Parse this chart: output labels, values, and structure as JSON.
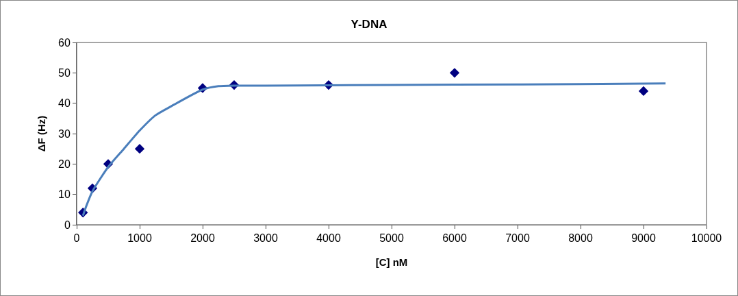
{
  "chart_data": {
    "type": "scatter",
    "title": "Y-DNA",
    "xlabel": "[C] nM",
    "ylabel": "ΔF (Hz)",
    "xlim": [
      0,
      10000
    ],
    "xticks": [
      0,
      1000,
      2000,
      3000,
      4000,
      5000,
      6000,
      7000,
      8000,
      9000,
      10000
    ],
    "ylim": [
      0,
      60
    ],
    "yticks": [
      0,
      10,
      20,
      30,
      40,
      50,
      60
    ],
    "grid": false,
    "series": [
      {
        "marker": "diamond",
        "color": "#000080",
        "x": [
          100,
          250,
          500,
          1000,
          2000,
          2500,
          4000,
          6000,
          9000
        ],
        "values": [
          4,
          12,
          20,
          25,
          45,
          46,
          46,
          50,
          44
        ]
      },
      {
        "type": "line",
        "marker": "none",
        "line_style": "solid",
        "color": "#4a7ebb",
        "x": [
          100,
          150,
          250,
          500,
          750,
          1000,
          1250,
          1500,
          2000,
          2250,
          2500,
          3000,
          4000,
          6000,
          8000,
          9350
        ],
        "values": [
          3,
          6,
          11,
          19,
          25,
          31,
          36,
          39,
          44.5,
          45.6,
          45.8,
          45.8,
          45.9,
          46.1,
          46.3,
          46.5
        ]
      }
    ]
  }
}
